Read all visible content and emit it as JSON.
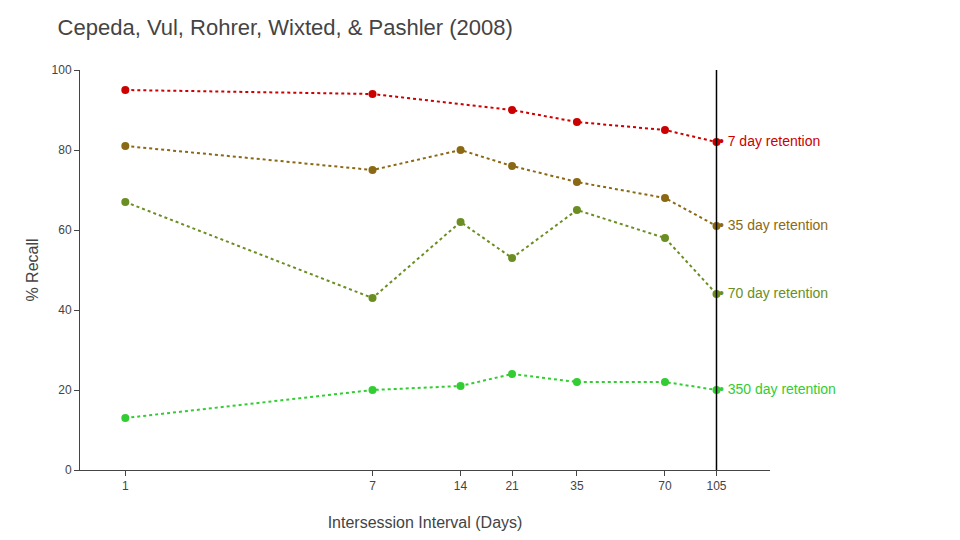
{
  "chart_data": {
    "type": "line",
    "title": "Cepeda, Vul, Rohrer, Wixted, & Pashler (2008)",
    "x_label": "Intersession Interval (Days)",
    "y_label": "% Recall",
    "log": "x",
    "xlim": [
      0.7,
      160
    ],
    "xticks": [
      1,
      7,
      14,
      21,
      35,
      70,
      105
    ],
    "ylim": [
      0,
      100
    ],
    "yticks": [
      0,
      20,
      40,
      60,
      80,
      100
    ],
    "grid": false,
    "marker": "circle",
    "line_style": "dotted",
    "series": [
      {
        "name": "7 day retention",
        "color": "#cc0000",
        "x": [
          1,
          7,
          21,
          35,
          70,
          105
        ],
        "values": [
          95,
          94,
          90,
          87,
          85,
          82
        ]
      },
      {
        "name": "35 day retention",
        "color": "#8B6914",
        "x": [
          1,
          7,
          14,
          21,
          35,
          70,
          105
        ],
        "values": [
          81,
          75,
          80,
          76,
          72,
          68,
          61
        ]
      },
      {
        "name": "70 day retention",
        "color": "#6B8E23",
        "x": [
          1,
          7,
          14,
          21,
          35,
          70,
          105
        ],
        "values": [
          67,
          43,
          62,
          53,
          65,
          58,
          44
        ]
      },
      {
        "name": "350 day retention",
        "color": "#32CD32",
        "x": [
          1,
          7,
          14,
          21,
          35,
          70,
          105
        ],
        "values": [
          13,
          20,
          21,
          24,
          22,
          22,
          20
        ]
      }
    ],
    "vertical_line": 105,
    "annotations": [
      {
        "text": "• 7 day retention",
        "x": 107,
        "y": 82,
        "color": "#cc0000"
      },
      {
        "text": "• 35 day retention",
        "x": 107,
        "y": 61,
        "color": "#8B6914"
      },
      {
        "text": "• 70 day retention",
        "x": 107,
        "y": 44,
        "color": "#6B8E23"
      },
      {
        "text": "• 350 day retention",
        "x": 107,
        "y": 20,
        "color": "#32CD32"
      }
    ]
  }
}
